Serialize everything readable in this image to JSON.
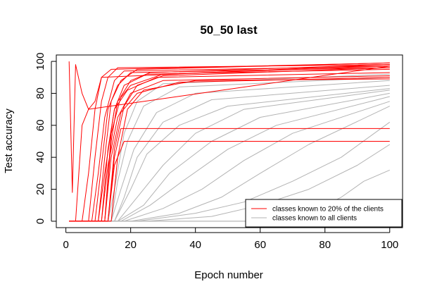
{
  "chart_data": {
    "type": "line",
    "title": "50_50 last",
    "xlabel": "Epoch number",
    "ylabel": "Test accuracy",
    "xlim": [
      1,
      100
    ],
    "ylim": [
      0,
      100
    ],
    "xticks": [
      0,
      20,
      40,
      60,
      80,
      100
    ],
    "yticks": [
      0,
      20,
      40,
      60,
      80,
      100
    ],
    "grid": false,
    "legend_position": "bottom-right",
    "legend": [
      {
        "label": "classes known to 20% of the clients",
        "color": "#ff0000"
      },
      {
        "label": "classes known to all clients",
        "color": "#b3b3b3"
      }
    ],
    "series": [
      {
        "group": "red",
        "color": "#ff0000",
        "x": [
          1,
          2,
          3,
          5,
          7,
          100
        ],
        "y": [
          100,
          18,
          98,
          80,
          70,
          97
        ]
      },
      {
        "group": "red",
        "color": "#ff0000",
        "x": [
          1,
          3,
          5,
          7,
          9,
          11,
          100
        ],
        "y": [
          0,
          0,
          60,
          70,
          75,
          90,
          98
        ]
      },
      {
        "group": "red",
        "color": "#ff0000",
        "x": [
          1,
          5,
          7,
          9,
          11,
          14,
          100
        ],
        "y": [
          0,
          0,
          30,
          70,
          90,
          95,
          99
        ]
      },
      {
        "group": "red",
        "color": "#ff0000",
        "x": [
          1,
          7,
          9,
          11,
          13,
          16,
          100
        ],
        "y": [
          0,
          0,
          40,
          75,
          90,
          96,
          98
        ]
      },
      {
        "group": "red",
        "color": "#ff0000",
        "x": [
          1,
          8,
          10,
          12,
          15,
          18,
          100
        ],
        "y": [
          0,
          0,
          30,
          65,
          88,
          94,
          97
        ]
      },
      {
        "group": "red",
        "color": "#ff0000",
        "x": [
          1,
          9,
          11,
          13,
          16,
          20,
          100
        ],
        "y": [
          0,
          0,
          35,
          70,
          85,
          93,
          96
        ]
      },
      {
        "group": "red",
        "color": "#ff0000",
        "x": [
          1,
          10,
          12,
          14,
          17,
          22,
          100
        ],
        "y": [
          0,
          0,
          40,
          75,
          88,
          95,
          99
        ]
      },
      {
        "group": "red",
        "color": "#ff0000",
        "x": [
          1,
          10,
          12,
          15,
          18,
          25,
          100
        ],
        "y": [
          0,
          0,
          30,
          70,
          85,
          92,
          95
        ]
      },
      {
        "group": "red",
        "color": "#ff0000",
        "x": [
          1,
          11,
          13,
          15,
          19,
          28,
          100
        ],
        "y": [
          0,
          0,
          45,
          70,
          82,
          90,
          93
        ]
      },
      {
        "group": "red",
        "color": "#ff0000",
        "x": [
          1,
          11,
          13,
          16,
          20,
          30,
          100
        ],
        "y": [
          0,
          0,
          35,
          65,
          80,
          88,
          91
        ]
      },
      {
        "group": "red",
        "color": "#ff0000",
        "x": [
          1,
          12,
          14,
          17,
          22,
          35,
          100
        ],
        "y": [
          0,
          0,
          40,
          68,
          80,
          87,
          90
        ]
      },
      {
        "group": "red",
        "color": "#ff0000",
        "x": [
          1,
          12,
          14,
          16,
          20,
          30,
          100
        ],
        "y": [
          0,
          0,
          50,
          75,
          85,
          92,
          97
        ]
      },
      {
        "group": "red",
        "color": "#ff0000",
        "x": [
          1,
          12,
          14,
          17,
          20,
          26,
          100
        ],
        "y": [
          0,
          0,
          55,
          78,
          88,
          93,
          98
        ]
      },
      {
        "group": "red",
        "color": "#ff0000",
        "x": [
          1,
          13,
          15,
          18,
          22,
          30,
          100
        ],
        "y": [
          0,
          0,
          45,
          72,
          85,
          91,
          96
        ]
      },
      {
        "group": "red",
        "color": "#ff0000",
        "x": [
          1,
          13,
          15,
          17,
          100
        ],
        "y": [
          0,
          0,
          40,
          58,
          58
        ]
      },
      {
        "group": "red",
        "color": "#ff0000",
        "x": [
          1,
          13,
          15,
          18,
          100
        ],
        "y": [
          0,
          0,
          35,
          50,
          50
        ]
      },
      {
        "group": "red",
        "color": "#ff0000",
        "x": [
          1,
          14,
          16,
          19,
          24,
          40,
          100
        ],
        "y": [
          0,
          0,
          40,
          70,
          82,
          88,
          89
        ]
      },
      {
        "group": "gray",
        "color": "#b3b3b3",
        "x": [
          1,
          13,
          15,
          18,
          22,
          30,
          100
        ],
        "y": [
          0,
          0,
          20,
          55,
          75,
          86,
          92
        ]
      },
      {
        "group": "gray",
        "color": "#b3b3b3",
        "x": [
          1,
          14,
          16,
          19,
          24,
          35,
          100
        ],
        "y": [
          0,
          0,
          25,
          50,
          72,
          84,
          90
        ]
      },
      {
        "group": "gray",
        "color": "#b3b3b3",
        "x": [
          1,
          14,
          17,
          21,
          28,
          40,
          100
        ],
        "y": [
          0,
          0,
          20,
          45,
          68,
          80,
          88
        ]
      },
      {
        "group": "gray",
        "color": "#b3b3b3",
        "x": [
          1,
          15,
          18,
          22,
          30,
          45,
          100
        ],
        "y": [
          0,
          0,
          15,
          40,
          62,
          76,
          85
        ]
      },
      {
        "group": "gray",
        "color": "#b3b3b3",
        "x": [
          1,
          15,
          20,
          25,
          35,
          50,
          100
        ],
        "y": [
          0,
          0,
          20,
          42,
          60,
          72,
          83
        ]
      },
      {
        "group": "gray",
        "color": "#b3b3b3",
        "x": [
          1,
          16,
          22,
          30,
          40,
          55,
          100
        ],
        "y": [
          0,
          0,
          15,
          35,
          55,
          70,
          82
        ]
      },
      {
        "group": "gray",
        "color": "#b3b3b3",
        "x": [
          1,
          16,
          24,
          32,
          45,
          60,
          100
        ],
        "y": [
          0,
          0,
          10,
          30,
          50,
          65,
          80
        ]
      },
      {
        "group": "gray",
        "color": "#b3b3b3",
        "x": [
          1,
          17,
          26,
          36,
          50,
          65,
          100
        ],
        "y": [
          0,
          0,
          10,
          25,
          45,
          60,
          78
        ]
      },
      {
        "group": "gray",
        "color": "#b3b3b3",
        "x": [
          1,
          18,
          30,
          42,
          55,
          70,
          100
        ],
        "y": [
          0,
          0,
          8,
          20,
          38,
          55,
          75
        ]
      },
      {
        "group": "gray",
        "color": "#b3b3b3",
        "x": [
          1,
          20,
          35,
          48,
          60,
          75,
          100
        ],
        "y": [
          0,
          0,
          5,
          15,
          30,
          48,
          72
        ]
      },
      {
        "group": "gray",
        "color": "#b3b3b3",
        "x": [
          1,
          22,
          40,
          55,
          70,
          85,
          100
        ],
        "y": [
          0,
          0,
          5,
          12,
          25,
          40,
          62
        ]
      },
      {
        "group": "gray",
        "color": "#b3b3b3",
        "x": [
          1,
          25,
          45,
          60,
          75,
          90,
          100
        ],
        "y": [
          0,
          0,
          3,
          10,
          20,
          35,
          48
        ]
      },
      {
        "group": "gray",
        "color": "#b3b3b3",
        "x": [
          1,
          60,
          75,
          85,
          92,
          100
        ],
        "y": [
          0,
          0,
          5,
          15,
          25,
          32
        ]
      },
      {
        "group": "gray",
        "color": "#b3b3b3",
        "x": [
          1,
          100
        ],
        "y": [
          0,
          0
        ]
      }
    ]
  }
}
